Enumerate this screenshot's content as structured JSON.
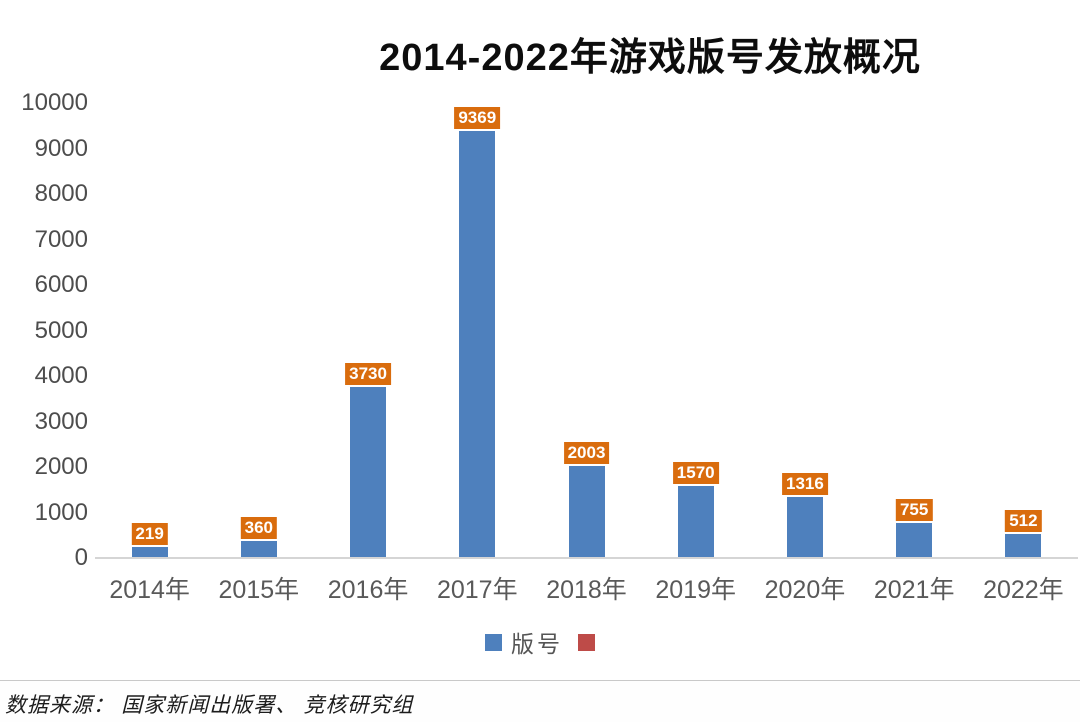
{
  "title": "2014-2022年游戏版号发放概况",
  "chart_data": {
    "type": "bar",
    "title": "2014-2022年游戏版号发放概况",
    "categories": [
      "2014年",
      "2015年",
      "2016年",
      "2017年",
      "2018年",
      "2019年",
      "2020年",
      "2021年",
      "2022年"
    ],
    "series": [
      {
        "name": "版号",
        "values": [
          219,
          360,
          3730,
          9369,
          2003,
          1570,
          1316,
          755,
          512
        ]
      }
    ],
    "xlabel": "",
    "ylabel": "",
    "ylim": [
      0,
      10000
    ],
    "yticks": [
      0,
      1000,
      2000,
      3000,
      4000,
      5000,
      6000,
      7000,
      8000,
      9000,
      10000
    ],
    "grid": false,
    "legend_position": "bottom",
    "bar_color": "#4e80bd",
    "data_label_bg": "#d96c0d",
    "data_label_color": "#ffffff"
  },
  "legend": {
    "items": [
      {
        "label": "版号",
        "color": "#4e80bd"
      },
      {
        "label": "",
        "color": "#be4b48"
      }
    ]
  },
  "footer": {
    "source_text": "数据来源：  国家新闻出版署、  竞核研究组"
  }
}
